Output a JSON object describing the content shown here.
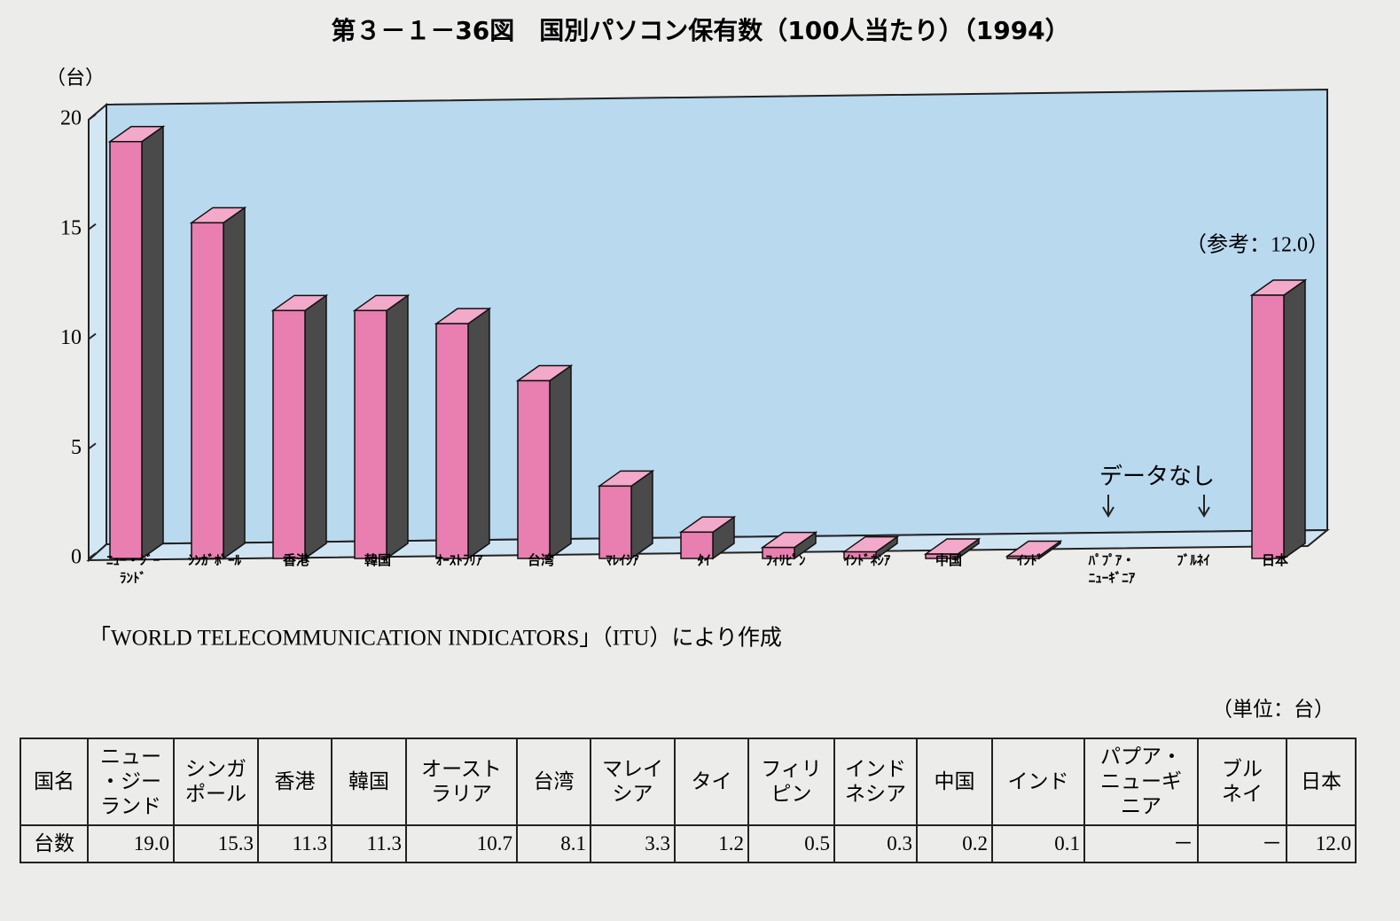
{
  "chart_data": {
    "type": "bar",
    "title": "第３－１－36図　国別パソコン保有数（100人当たり）（1994）",
    "y_label": "（台）",
    "categories": [
      "ﾆｭｰ・ｼﾞｰ\nﾗﾝﾄﾞ",
      "ｼﾝｶﾞﾎﾟｰﾙ",
      "香港",
      "韓国",
      "ｵｰｽﾄﾗﾘｱ",
      "台湾",
      "ﾏﾚｲｼｱ",
      "ﾀｲ",
      "ﾌｨﾘﾋﾟﾝ",
      "ｲﾝﾄﾞﾈｼｱ",
      "中国",
      "ｲﾝﾄﾞ",
      "ﾊﾟﾌﾟｱ・\nﾆｭｰｷﾞﾆｱ",
      "ﾌﾞﾙﾈｲ",
      "日本"
    ],
    "values": [
      19.0,
      15.3,
      11.3,
      11.3,
      10.7,
      8.1,
      3.3,
      1.2,
      0.5,
      0.3,
      0.2,
      0.1,
      null,
      null,
      12.0
    ],
    "color": "#e97fb0",
    "ylim": [
      0,
      20
    ],
    "yticks": [
      0,
      5,
      10,
      15,
      20
    ],
    "annotations": [
      "データなし",
      "（参考：12.0）"
    ],
    "source": "「WORLD TELECOMMUNICATION INDICATORS」（ITU）により作成"
  },
  "table": {
    "unit": "（単位：台）",
    "rows": [
      [
        "国名",
        "ニュー\n・ジー\nランド",
        "シンガ\nポール",
        "香港",
        "韓国",
        "オースト\nラリア",
        "台湾",
        "マレイ\nシア",
        "タイ",
        "フィリ\nピン",
        "インド\nネシア",
        "中国",
        "インド",
        "パプア・\nニューギ\nニア",
        "ブル\nネイ",
        "日本"
      ],
      [
        "台数",
        "19.0",
        "15.3",
        "11.3",
        "11.3",
        "10.7",
        "8.1",
        "3.3",
        "1.2",
        "0.5",
        "0.3",
        "0.2",
        "0.1",
        "－",
        "－",
        "12.0"
      ]
    ]
  }
}
